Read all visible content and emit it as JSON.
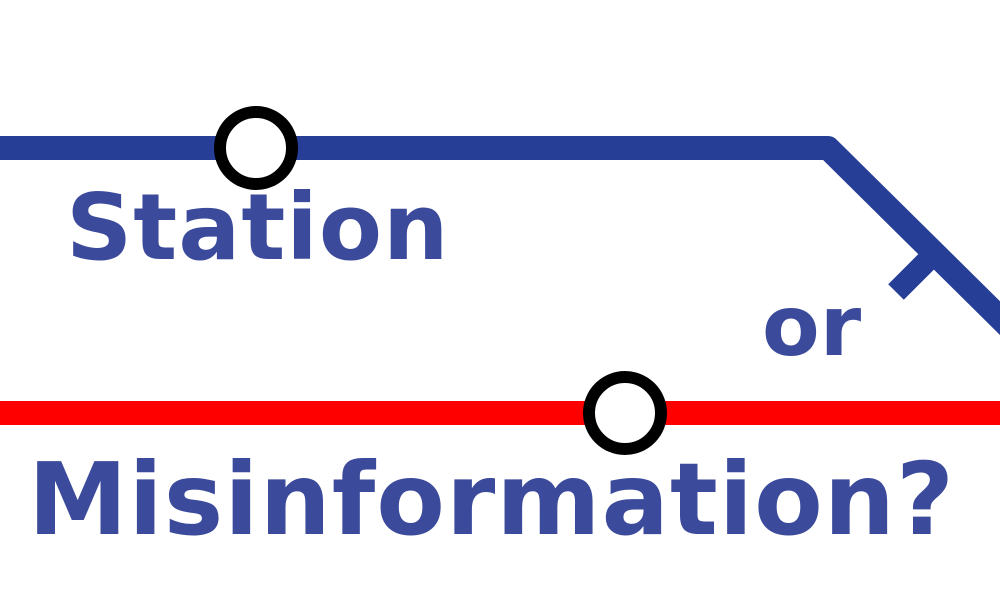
{
  "colors": {
    "background": "#ffffff",
    "blue_line": "#263e96",
    "red_line": "#ff0000",
    "station_ring": "#000000",
    "text": "#3c4a9c"
  },
  "words": {
    "first": "Station",
    "middle": "or",
    "last": "Misinformation?"
  }
}
